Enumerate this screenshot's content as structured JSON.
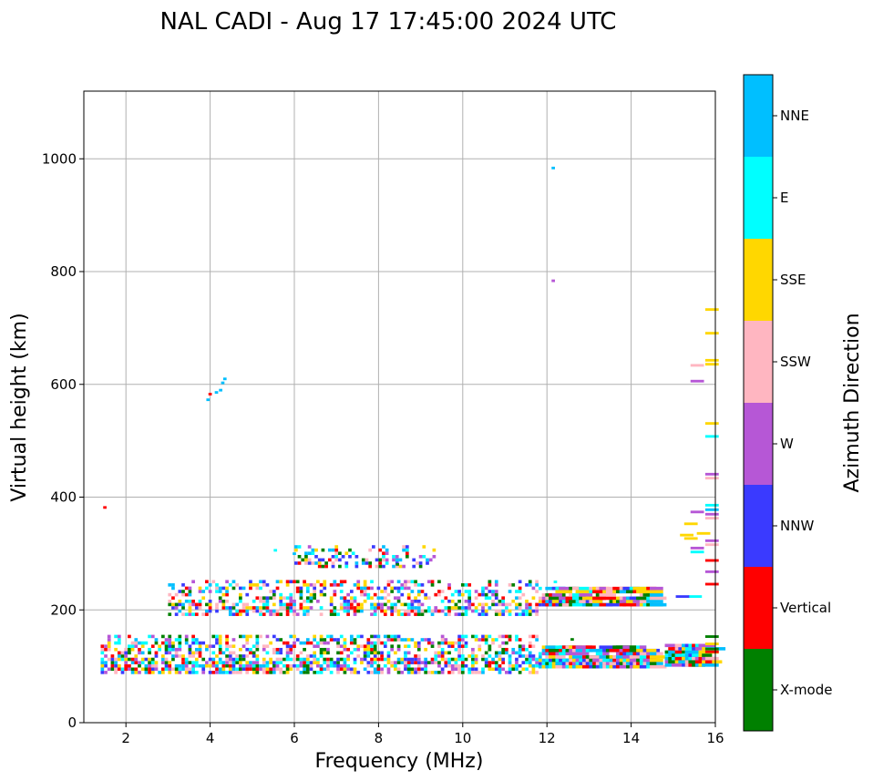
{
  "chart_data": {
    "type": "scatter",
    "title": "NAL CADI - Aug 17 17:45:00 2024 UTC",
    "xlabel": "Frequency (MHz)",
    "ylabel": "Virtual height (km)",
    "xlim": [
      1,
      16
    ],
    "ylim": [
      0,
      1120
    ],
    "xticks": [
      2,
      4,
      6,
      8,
      10,
      12,
      14,
      16
    ],
    "yticks": [
      0,
      200,
      400,
      600,
      800,
      1000
    ],
    "grid": true,
    "colorbar": {
      "label": "Azimuth Direction",
      "categories": [
        {
          "name": "X-mode",
          "color": "#008000"
        },
        {
          "name": "Vertical",
          "color": "#ff0000"
        },
        {
          "name": "NNW",
          "color": "#3a3aff"
        },
        {
          "name": "W",
          "color": "#b657d6"
        },
        {
          "name": "SSW",
          "color": "#ffb6c1"
        },
        {
          "name": "SSE",
          "color": "#ffd700"
        },
        {
          "name": "E",
          "color": "#00ffff"
        },
        {
          "name": "NNE",
          "color": "#00bfff"
        }
      ]
    },
    "clusters": [
      {
        "name": "E-layer echoes",
        "f_range": [
          1.4,
          11.8
        ],
        "h_range": [
          92,
          160
        ],
        "density": 0.55
      },
      {
        "name": "E-layer trace",
        "f_range": [
          11.8,
          14.5
        ],
        "h_range": [
          102,
          138
        ],
        "density": 0.8
      },
      {
        "name": "Es high frequency",
        "f_range": [
          14.8,
          15.8
        ],
        "h_range": [
          105,
          140
        ],
        "density": 0.7
      },
      {
        "name": "F-layer trace",
        "f_range": [
          3.0,
          11.8
        ],
        "h_range": [
          195,
          255
        ],
        "density": 0.45
      },
      {
        "name": "F-layer trace 2",
        "f_range": [
          11.8,
          14.5
        ],
        "h_range": [
          212,
          245
        ],
        "density": 0.6
      },
      {
        "name": "F2 trace",
        "f_range": [
          6.0,
          9.3
        ],
        "h_range": [
          280,
          320
        ],
        "density": 0.35
      }
    ],
    "points": [
      {
        "f": 1.5,
        "h": 384,
        "az": "Vertical"
      },
      {
        "f": 4.0,
        "h": 585,
        "az": "Vertical"
      },
      {
        "f": 3.95,
        "h": 575,
        "az": "NNE"
      },
      {
        "f": 4.15,
        "h": 588,
        "az": "NNE"
      },
      {
        "f": 4.3,
        "h": 605,
        "az": "NNE"
      },
      {
        "f": 4.35,
        "h": 612,
        "az": "NNE"
      },
      {
        "f": 4.25,
        "h": 592,
        "az": "NNE"
      },
      {
        "f": 12.15,
        "h": 986,
        "az": "NNE"
      },
      {
        "f": 12.15,
        "h": 786,
        "az": "W"
      },
      {
        "f": 15.8,
        "h": 735,
        "az": "SSE"
      },
      {
        "f": 15.8,
        "h": 693,
        "az": "SSE"
      },
      {
        "f": 15.8,
        "h": 645,
        "az": "SSE"
      },
      {
        "f": 15.8,
        "h": 638,
        "az": "SSE"
      },
      {
        "f": 15.45,
        "h": 636,
        "az": "SSW"
      },
      {
        "f": 15.45,
        "h": 608,
        "az": "W"
      },
      {
        "f": 15.8,
        "h": 533,
        "az": "SSE"
      },
      {
        "f": 15.8,
        "h": 510,
        "az": "E"
      },
      {
        "f": 15.8,
        "h": 443,
        "az": "W"
      },
      {
        "f": 15.8,
        "h": 436,
        "az": "SSW"
      },
      {
        "f": 15.8,
        "h": 388,
        "az": "E"
      },
      {
        "f": 15.8,
        "h": 380,
        "az": "NNE"
      },
      {
        "f": 15.45,
        "h": 376,
        "az": "W"
      },
      {
        "f": 15.8,
        "h": 372,
        "az": "W"
      },
      {
        "f": 15.8,
        "h": 365,
        "az": "SSW"
      },
      {
        "f": 15.3,
        "h": 355,
        "az": "SSE"
      },
      {
        "f": 15.6,
        "h": 338,
        "az": "SSE"
      },
      {
        "f": 15.2,
        "h": 335,
        "az": "SSE"
      },
      {
        "f": 15.3,
        "h": 329,
        "az": "SSE"
      },
      {
        "f": 15.8,
        "h": 325,
        "az": "W"
      },
      {
        "f": 15.8,
        "h": 318,
        "az": "SSW"
      },
      {
        "f": 15.45,
        "h": 312,
        "az": "W"
      },
      {
        "f": 15.45,
        "h": 305,
        "az": "E"
      },
      {
        "f": 15.8,
        "h": 290,
        "az": "Vertical"
      },
      {
        "f": 15.8,
        "h": 270,
        "az": "W"
      },
      {
        "f": 15.8,
        "h": 248,
        "az": "Vertical"
      },
      {
        "f": 15.4,
        "h": 226,
        "az": "E"
      },
      {
        "f": 15.1,
        "h": 226,
        "az": "NNW"
      },
      {
        "f": 15.8,
        "h": 155,
        "az": "X-mode"
      },
      {
        "f": 15.8,
        "h": 142,
        "az": "SSE"
      },
      {
        "f": 15.8,
        "h": 133,
        "az": "X-mode"
      },
      {
        "f": 15.8,
        "h": 128,
        "az": "Vertical"
      },
      {
        "f": 6.0,
        "h": 302,
        "az": "NNE"
      },
      {
        "f": 5.55,
        "h": 308,
        "az": "E"
      },
      {
        "f": 8.45,
        "h": 283,
        "az": "X-mode"
      },
      {
        "f": 12.6,
        "h": 150,
        "az": "X-mode"
      },
      {
        "f": 12.2,
        "h": 252,
        "az": "E"
      }
    ]
  }
}
